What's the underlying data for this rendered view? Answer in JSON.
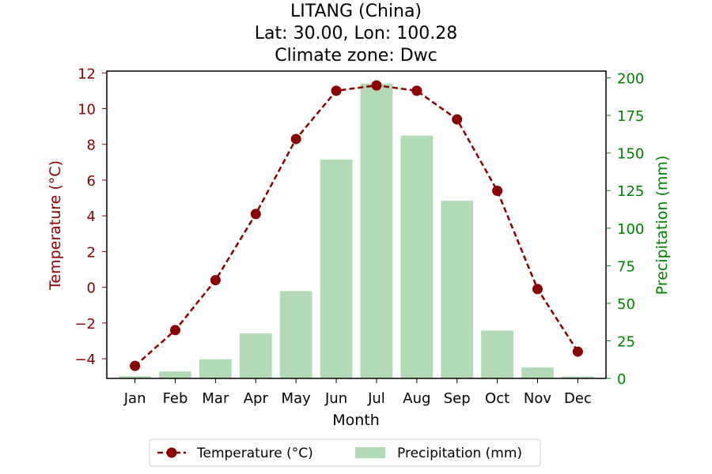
{
  "chart_data": {
    "type": "bar+line",
    "title_lines": [
      "LITANG (China)",
      "Lat: 30.00, Lon: 100.28",
      "Climate zone: Dwc"
    ],
    "xlabel": "Month",
    "ylabel_left": "Temperature (°C)",
    "ylabel_right": "Precipitation (mm)",
    "categories": [
      "Jan",
      "Feb",
      "Mar",
      "Apr",
      "May",
      "Jun",
      "Jul",
      "Aug",
      "Sep",
      "Oct",
      "Nov",
      "Dec"
    ],
    "left_axis": {
      "ylim": [
        -5.1,
        12.1
      ],
      "ticks": [
        -4,
        -2,
        0,
        2,
        4,
        6,
        8,
        10,
        12
      ],
      "color": "#8b0000"
    },
    "right_axis": {
      "ylim": [
        0,
        204.5
      ],
      "ticks": [
        0,
        25,
        50,
        75,
        100,
        125,
        150,
        175,
        200
      ],
      "color": "#008000"
    },
    "series": [
      {
        "name": "Precipitation (mm)",
        "type": "bar",
        "axis": "right",
        "color": "#b2dab4",
        "values": [
          1.5,
          4.6,
          12.8,
          29.9,
          58.1,
          145.7,
          196.2,
          161.6,
          118.2,
          31.8,
          7.3,
          1.3
        ]
      },
      {
        "name": "Temperature (°C)",
        "type": "line",
        "axis": "left",
        "color": "#8b0000",
        "style": "dashed",
        "marker": "circle",
        "values": [
          -4.4,
          -2.4,
          0.4,
          4.1,
          8.3,
          11.0,
          11.3,
          11.0,
          9.4,
          5.4,
          -0.1,
          -3.6
        ]
      }
    ],
    "legend": {
      "position": "bottom-center",
      "entries": [
        "Temperature (°C)",
        "Precipitation (mm)"
      ]
    },
    "grid": false
  }
}
